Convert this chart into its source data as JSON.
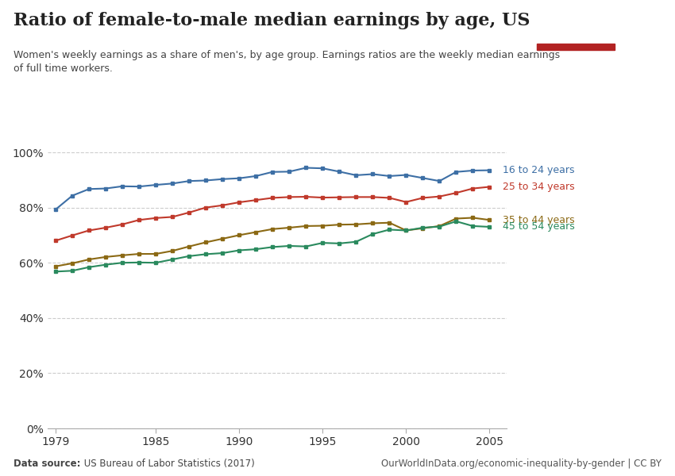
{
  "title": "Ratio of female-to-male median earnings by age, US",
  "subtitle": "Women's weekly earnings as a share of men's, by age group. Earnings ratios are the weekly median earnings\nof full time workers.",
  "background_color": "#ffffff",
  "grid_color": "#cccccc",
  "source_bold": "Data source:",
  "source_rest": " US Bureau of Labor Statistics (2017)",
  "url_text": "OurWorldInData.org/economic-inequality-by-gender | CC BY",
  "years": [
    1979,
    1980,
    1981,
    1982,
    1983,
    1984,
    1985,
    1986,
    1987,
    1988,
    1989,
    1990,
    1991,
    1992,
    1993,
    1994,
    1995,
    1996,
    1997,
    1998,
    1999,
    2000,
    2001,
    2002,
    2003,
    2004,
    2005
  ],
  "series": [
    {
      "label": "16 to 24 years",
      "color": "#3d6fa5",
      "values": [
        0.793,
        0.843,
        0.867,
        0.869,
        0.877,
        0.876,
        0.882,
        0.887,
        0.896,
        0.898,
        0.903,
        0.906,
        0.914,
        0.929,
        0.93,
        0.944,
        0.942,
        0.93,
        0.917,
        0.921,
        0.914,
        0.918,
        0.907,
        0.896,
        0.929,
        0.934,
        0.935
      ]
    },
    {
      "label": "25 to 34 years",
      "color": "#c0392b",
      "values": [
        0.68,
        0.699,
        0.717,
        0.727,
        0.739,
        0.755,
        0.762,
        0.766,
        0.782,
        0.8,
        0.808,
        0.819,
        0.827,
        0.835,
        0.838,
        0.839,
        0.836,
        0.837,
        0.838,
        0.838,
        0.835,
        0.82,
        0.835,
        0.84,
        0.853,
        0.869,
        0.875
      ]
    },
    {
      "label": "35 to 44 years",
      "color": "#8B6914",
      "values": [
        0.587,
        0.598,
        0.612,
        0.621,
        0.627,
        0.632,
        0.632,
        0.643,
        0.659,
        0.674,
        0.687,
        0.7,
        0.711,
        0.722,
        0.727,
        0.733,
        0.734,
        0.738,
        0.739,
        0.743,
        0.745,
        0.717,
        0.725,
        0.733,
        0.76,
        0.763,
        0.755
      ]
    },
    {
      "label": "45 to 54 years",
      "color": "#2a8a5e",
      "values": [
        0.568,
        0.571,
        0.584,
        0.593,
        0.6,
        0.601,
        0.6,
        0.612,
        0.624,
        0.631,
        0.635,
        0.645,
        0.649,
        0.657,
        0.661,
        0.659,
        0.672,
        0.67,
        0.676,
        0.704,
        0.72,
        0.717,
        0.727,
        0.731,
        0.75,
        0.733,
        0.73
      ]
    }
  ],
  "ylim": [
    0.0,
    1.0
  ],
  "yticks": [
    0.0,
    0.2,
    0.4,
    0.6,
    0.8,
    1.0
  ],
  "ytick_labels": [
    "0%",
    "20%",
    "40%",
    "60%",
    "80%",
    "100%"
  ],
  "xlim": [
    1978.5,
    2006.0
  ],
  "xticks": [
    1979,
    1985,
    1990,
    1995,
    2000,
    2005
  ],
  "logo_bg_color": "#1a3a5c",
  "logo_text_color": "#ffffff",
  "logo_red_color": "#b22222"
}
